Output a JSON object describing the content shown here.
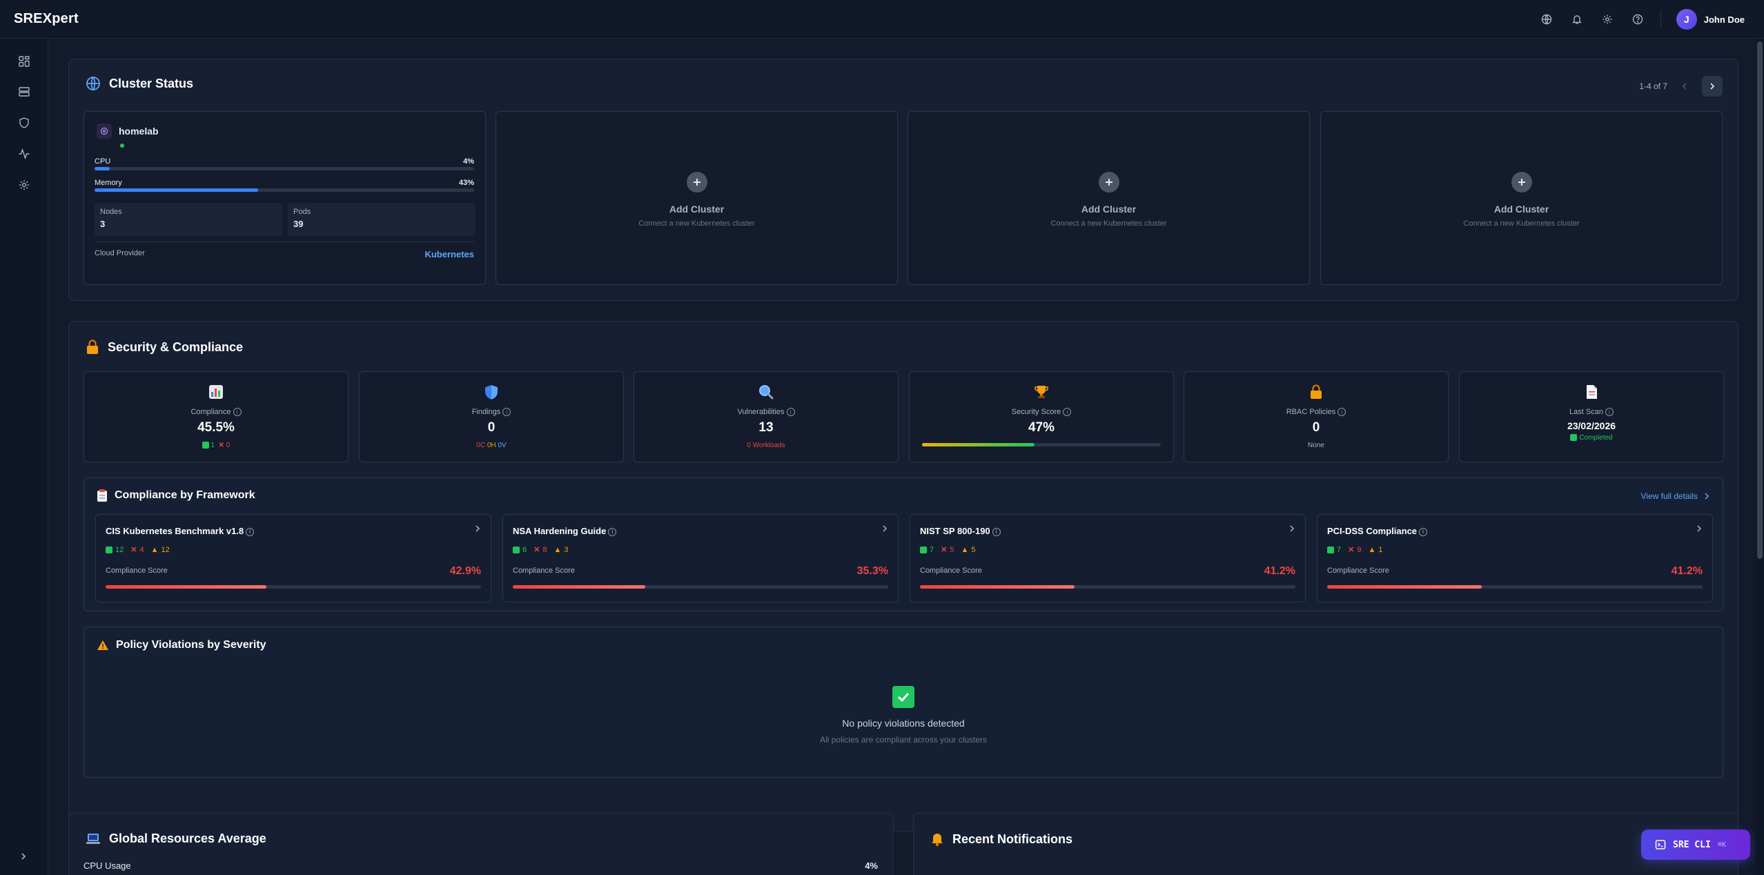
{
  "app": {
    "logo": "SREXpert"
  },
  "topbar": {
    "user_initial": "J",
    "user_name": "John Doe"
  },
  "sidebar": {
    "items": [
      {
        "name": "dashboard",
        "icon": "grid-icon"
      },
      {
        "name": "resources",
        "icon": "server-icon"
      },
      {
        "name": "security",
        "icon": "shield-icon"
      },
      {
        "name": "monitoring",
        "icon": "activity-icon"
      },
      {
        "name": "settings",
        "icon": "gear-icon"
      }
    ]
  },
  "cluster_status": {
    "title": "Cluster Status",
    "pagination": "1-4 of 7",
    "cluster": {
      "name": "homelab",
      "cpu_label": "CPU",
      "cpu_pct": "4%",
      "cpu_value": 4,
      "memory_label": "Memory",
      "memory_pct": "43%",
      "memory_value": 43,
      "nodes_label": "Nodes",
      "nodes": "3",
      "pods_label": "Pods",
      "pods": "39",
      "cloud_label": "Cloud Provider",
      "cloud": "Kubernetes"
    },
    "add_card": {
      "title": "Add Cluster",
      "subtitle": "Connect a new Kubernetes cluster"
    }
  },
  "security": {
    "title": "Security & Compliance",
    "kpis": [
      {
        "label": "Compliance",
        "value": "45.5%",
        "pass": "1",
        "fail": "0"
      },
      {
        "label": "Findings",
        "value": "0",
        "c": "0C",
        "h": "0H",
        "v": "0V"
      },
      {
        "label": "Vulnerabilities",
        "value": "13",
        "sub": "0 Workloads"
      },
      {
        "label": "Security Score",
        "value": "47%",
        "score": 47
      },
      {
        "label": "RBAC Policies",
        "value": "0",
        "sub": "None"
      },
      {
        "label": "Last Scan",
        "value": "23/02/2026",
        "sub": "Completed"
      }
    ],
    "frameworks_title": "Compliance by Framework",
    "view_details": "View full details",
    "frameworks": [
      {
        "name": "CIS Kubernetes Benchmark v1.8",
        "pass": "12",
        "fail": "4",
        "warn": "12",
        "score_label": "Compliance Score",
        "score": "42.9%",
        "score_value": 42.9
      },
      {
        "name": "NSA Hardening Guide",
        "pass": "6",
        "fail": "8",
        "warn": "3",
        "score_label": "Compliance Score",
        "score": "35.3%",
        "score_value": 35.3
      },
      {
        "name": "NIST SP 800-190",
        "pass": "7",
        "fail": "5",
        "warn": "5",
        "score_label": "Compliance Score",
        "score": "41.2%",
        "score_value": 41.2
      },
      {
        "name": "PCI-DSS Compliance",
        "pass": "7",
        "fail": "9",
        "warn": "1",
        "score_label": "Compliance Score",
        "score": "41.2%",
        "score_value": 41.2
      }
    ],
    "violations_title": "Policy Violations by Severity",
    "violations_empty": "No policy violations detected",
    "violations_sub": "All policies are compliant across your clusters"
  },
  "global_resources": {
    "title": "Global Resources Average",
    "cpu_label": "CPU Usage",
    "cpu_pct": "4%"
  },
  "notifications": {
    "title": "Recent Notifications"
  },
  "cli_button": {
    "label": "SRE CLI",
    "shortcut": "⌘K"
  },
  "colors": {
    "accent": "#3b82f6",
    "danger": "#ef4444",
    "success": "#22c55e",
    "warning": "#f59e0b"
  }
}
